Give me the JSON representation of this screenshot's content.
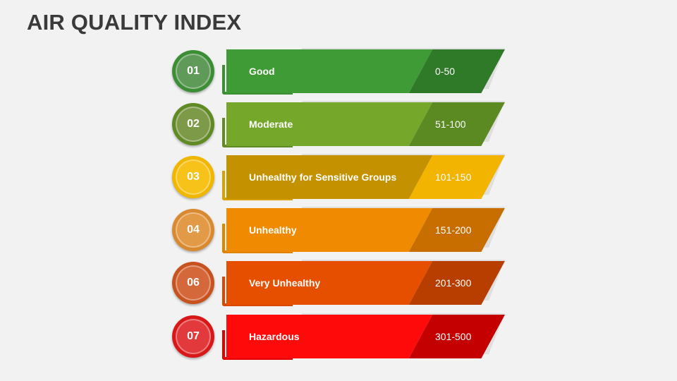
{
  "title": "AIR QUALITY INDEX",
  "levels": [
    {
      "number": "01",
      "label": "Good",
      "range": "0-50",
      "colors": {
        "main": "#3f9b35",
        "range": "#2f7a28",
        "ring": "#3c8e35",
        "center": "#5f9a58",
        "bracket": "#3c8e35"
      }
    },
    {
      "number": "02",
      "label": "Moderate",
      "range": "51-100",
      "colors": {
        "main": "#74a72a",
        "range": "#5b8a22",
        "ring": "#5f8a24",
        "center": "#7d9a48",
        "bracket": "#5f8a24"
      }
    },
    {
      "number": "03",
      "label": "Unhealthy for Sensitive Groups",
      "range": "101-150",
      "colors": {
        "main": "#c49200",
        "range": "#f3b400",
        "ring": "#f0b700",
        "center": "#f7c21a",
        "bracket": "#d8a000"
      }
    },
    {
      "number": "04",
      "label": "Unhealthy",
      "range": "151-200",
      "colors": {
        "main": "#f08a00",
        "range": "#c86e00",
        "ring": "#d98a30",
        "center": "#e39a46",
        "bracket": "#e08400"
      }
    },
    {
      "number": "06",
      "label": "Very Unhealthy",
      "range": "201-300",
      "colors": {
        "main": "#e64e00",
        "range": "#b83e00",
        "ring": "#c8521e",
        "center": "#d4683a",
        "bracket": "#d84800"
      }
    },
    {
      "number": "07",
      "label": "Hazardous",
      "range": "301-500",
      "colors": {
        "main": "#ff0a0a",
        "range": "#c40000",
        "ring": "#d81818",
        "center": "#e2393c",
        "bracket": "#e00000"
      }
    }
  ]
}
